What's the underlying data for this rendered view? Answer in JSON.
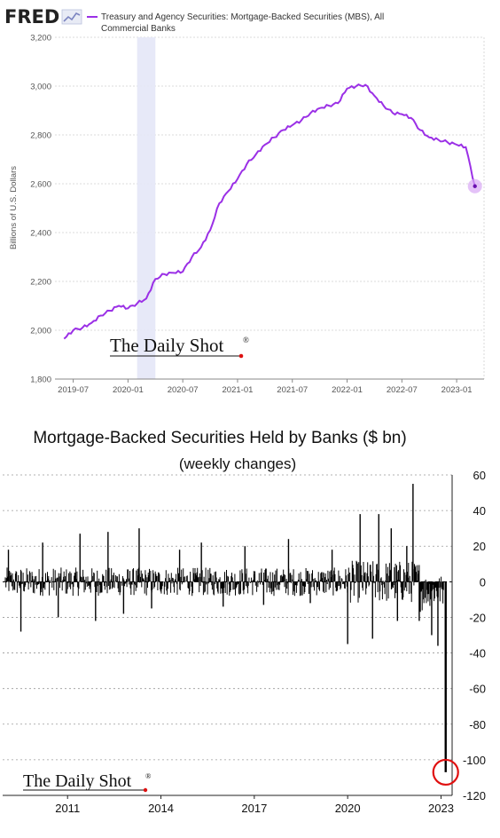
{
  "chart_data": [
    {
      "type": "line",
      "source_logo": "FRED",
      "legend": "Treasury and Agency Securities: Mortgage-Backed Securities (MBS), All",
      "legend_line2": "Commercial Banks",
      "ylabel": "Billions of U.S. Dollars",
      "ylim": [
        1800,
        3200
      ],
      "yticks": [
        "1,800",
        "2,000",
        "2,200",
        "2,400",
        "2,600",
        "2,800",
        "3,000",
        "3,200"
      ],
      "xticks": [
        "2019-07",
        "2020-01",
        "2020-07",
        "2021-01",
        "2021-07",
        "2022-01",
        "2022-07",
        "2023-01"
      ],
      "recession_shade": [
        "2020-02",
        "2020-04"
      ],
      "watermark": "The Daily Shot",
      "watermark_mark": "®",
      "line_color": "#9b30e6",
      "series": [
        {
          "x": [
            "2019-06",
            "2019-07",
            "2019-08",
            "2019-09",
            "2019-10",
            "2019-11",
            "2019-12",
            "2020-01",
            "2020-02",
            "2020-03",
            "2020-04",
            "2020-05",
            "2020-06",
            "2020-07",
            "2020-08",
            "2020-09",
            "2020-10",
            "2020-11",
            "2020-12",
            "2021-01",
            "2021-02",
            "2021-03",
            "2021-04",
            "2021-05",
            "2021-06",
            "2021-07",
            "2021-08",
            "2021-09",
            "2021-10",
            "2021-11",
            "2021-12",
            "2022-01",
            "2022-02",
            "2022-03",
            "2022-04",
            "2022-05",
            "2022-06",
            "2022-07",
            "2022-08",
            "2022-09",
            "2022-10",
            "2022-11",
            "2022-12",
            "2023-01",
            "2023-02",
            "2023-03"
          ],
          "y": [
            1965,
            2000,
            2010,
            2030,
            2060,
            2080,
            2100,
            2090,
            2110,
            2130,
            2210,
            2230,
            2235,
            2240,
            2300,
            2340,
            2410,
            2520,
            2570,
            2620,
            2680,
            2720,
            2760,
            2790,
            2820,
            2840,
            2860,
            2890,
            2910,
            2920,
            2930,
            2990,
            3000,
            3005,
            2960,
            2920,
            2890,
            2885,
            2870,
            2820,
            2790,
            2780,
            2770,
            2760,
            2750,
            2590
          ]
        }
      ]
    },
    {
      "type": "bar",
      "title": "Mortgage-Backed Securities Held by Banks ($ bn)",
      "subtitle": "(weekly changes)",
      "ylim": [
        -120,
        60
      ],
      "yticks": [
        "60",
        "40",
        "20",
        "0",
        "-20",
        "-40",
        "-60",
        "-80",
        "-100",
        "-120"
      ],
      "xticks": [
        "2011",
        "2014",
        "2017",
        "2020",
        "2023"
      ],
      "watermark": "The Daily Shot",
      "watermark_mark": "®",
      "highlight": {
        "date": "2023-03",
        "value": -107
      },
      "series": [
        {
          "name": "",
          "x_start": "2009-01",
          "x_end": "2023-03",
          "note": "weekly changes; values approximate",
          "spikes": [
            {
              "year": 2009.1,
              "value": 18
            },
            {
              "year": 2009.5,
              "value": -28
            },
            {
              "year": 2010.2,
              "value": 22
            },
            {
              "year": 2010.7,
              "value": -20
            },
            {
              "year": 2011.4,
              "value": 27
            },
            {
              "year": 2011.9,
              "value": -22
            },
            {
              "year": 2012.3,
              "value": 28
            },
            {
              "year": 2012.8,
              "value": -18
            },
            {
              "year": 2013.3,
              "value": 30
            },
            {
              "year": 2013.7,
              "value": -15
            },
            {
              "year": 2014.6,
              "value": 18
            },
            {
              "year": 2015.3,
              "value": 22
            },
            {
              "year": 2016.0,
              "value": -14
            },
            {
              "year": 2016.7,
              "value": 20
            },
            {
              "year": 2017.3,
              "value": -13
            },
            {
              "year": 2018.1,
              "value": 24
            },
            {
              "year": 2018.8,
              "value": -12
            },
            {
              "year": 2019.5,
              "value": 18
            },
            {
              "year": 2020.0,
              "value": -35
            },
            {
              "year": 2020.4,
              "value": 38
            },
            {
              "year": 2020.8,
              "value": -32
            },
            {
              "year": 2021.0,
              "value": 38
            },
            {
              "year": 2021.4,
              "value": 30
            },
            {
              "year": 2021.6,
              "value": -22
            },
            {
              "year": 2021.9,
              "value": 20
            },
            {
              "year": 2022.1,
              "value": 55
            },
            {
              "year": 2022.3,
              "value": -22
            },
            {
              "year": 2022.7,
              "value": -30
            },
            {
              "year": 2022.9,
              "value": -36
            },
            {
              "year": 2023.15,
              "value": -107
            }
          ]
        }
      ]
    }
  ]
}
